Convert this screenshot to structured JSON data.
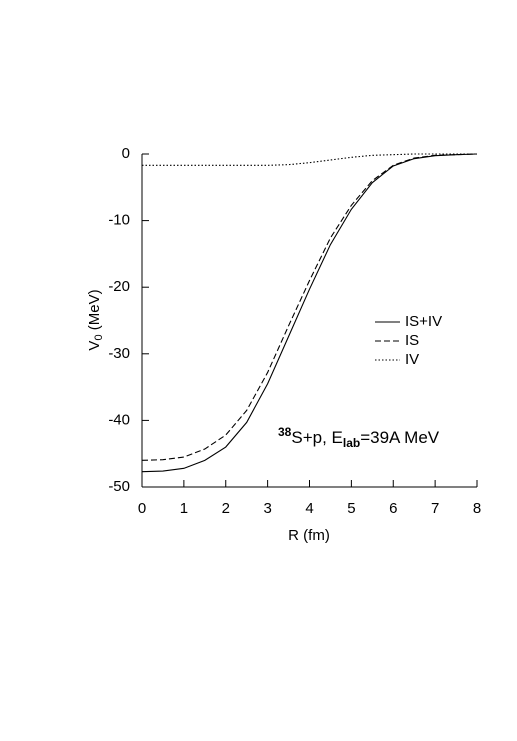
{
  "chart_data": {
    "type": "line",
    "x_label": "R (fm)",
    "y_label": {
      "main": "V",
      "sub": "0",
      "rest": " (MeV)"
    },
    "annotation": {
      "sup": "38",
      "main": "S+p, E",
      "sub": "lab",
      "rest": "=39A MeV"
    },
    "x": [
      0,
      0.5,
      1,
      1.5,
      2,
      2.5,
      3,
      3.5,
      4,
      4.5,
      5,
      5.5,
      6,
      6.5,
      7,
      7.5,
      8
    ],
    "series": [
      {
        "name": "IS+IV",
        "color": "#000000",
        "style": "solid",
        "values": [
          -47.7,
          -47.6,
          -47.2,
          -46.0,
          -44.0,
          -40.3,
          -34.5,
          -27.4,
          -20.3,
          -13.6,
          -8.3,
          -4.3,
          -1.8,
          -0.7,
          -0.25,
          -0.1,
          0
        ]
      },
      {
        "name": "IS",
        "color": "#000000",
        "style": "dashed",
        "values": [
          -46.0,
          -45.9,
          -45.5,
          -44.3,
          -42.2,
          -38.5,
          -32.8,
          -25.8,
          -19.0,
          -12.6,
          -7.7,
          -4.0,
          -1.7,
          -0.6,
          -0.2,
          -0.1,
          0
        ]
      },
      {
        "name": "IV",
        "color": "#000000",
        "style": "dotted",
        "values": [
          -1.7,
          -1.7,
          -1.7,
          -1.7,
          -1.7,
          -1.7,
          -1.7,
          -1.6,
          -1.3,
          -0.9,
          -0.5,
          -0.2,
          -0.1,
          0,
          0,
          0,
          0
        ]
      }
    ],
    "xlim": [
      0,
      8
    ],
    "xticks": [
      0,
      1,
      2,
      3,
      4,
      5,
      6,
      7,
      8
    ],
    "ylim": [
      -50,
      0
    ],
    "yticks": [
      -50,
      -40,
      -30,
      -20,
      -10,
      0
    ]
  }
}
